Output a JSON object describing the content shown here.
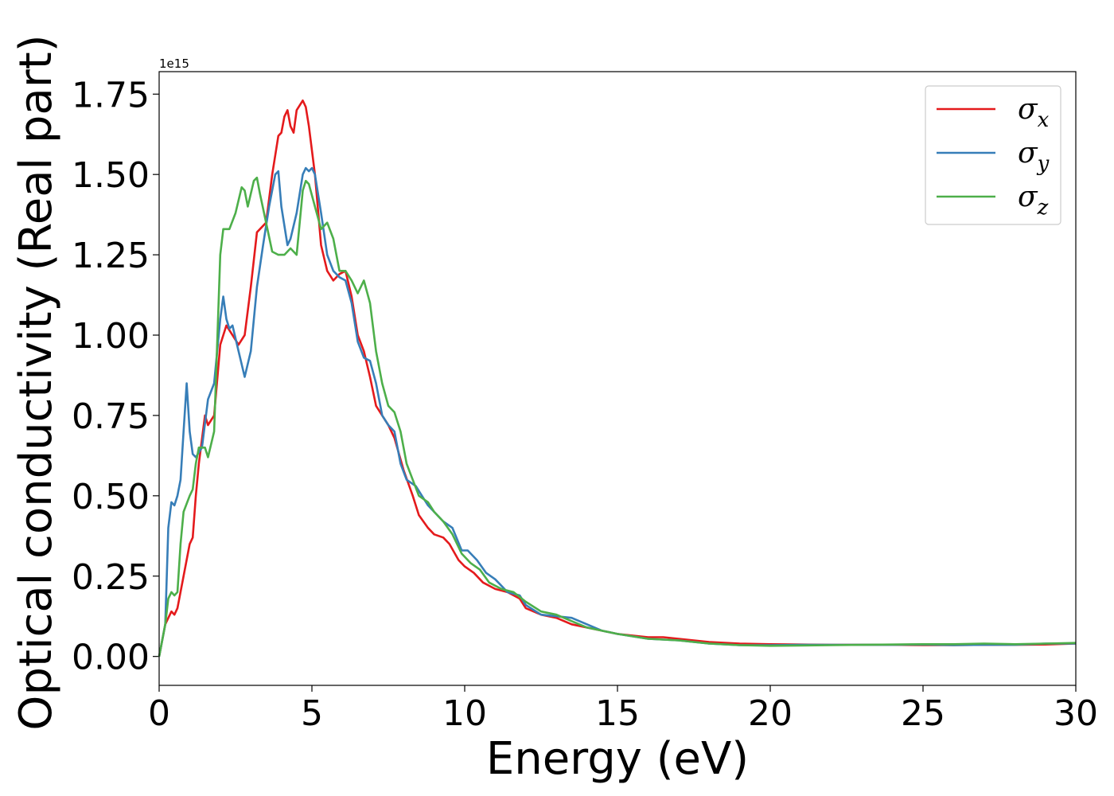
{
  "chart_data": {
    "type": "line",
    "title": "",
    "xlabel": "Energy (eV)",
    "ylabel": "Optical conductivity (Real part)",
    "y_offset_label": "1e15",
    "xlim": [
      0,
      30
    ],
    "ylim": [
      -0.09,
      1.82
    ],
    "xticks": [
      0,
      5,
      10,
      15,
      20,
      25,
      30
    ],
    "xtick_labels": [
      "0",
      "5",
      "10",
      "15",
      "20",
      "25",
      "30"
    ],
    "yticks": [
      0.0,
      0.25,
      0.5,
      0.75,
      1.0,
      1.25,
      1.5,
      1.75
    ],
    "ytick_labels": [
      "0.00",
      "0.25",
      "0.50",
      "0.75",
      "1.00",
      "1.25",
      "1.50",
      "1.75"
    ],
    "grid": false,
    "legend_placement": "top-right",
    "series": [
      {
        "name": "σx",
        "legend_base": "σ",
        "legend_sub": "x",
        "color": "#e41a1c",
        "points": [
          [
            0,
            0
          ],
          [
            0.2,
            0.1
          ],
          [
            0.4,
            0.14
          ],
          [
            0.5,
            0.13
          ],
          [
            0.6,
            0.15
          ],
          [
            0.8,
            0.25
          ],
          [
            1.0,
            0.35
          ],
          [
            1.1,
            0.37
          ],
          [
            1.2,
            0.5
          ],
          [
            1.3,
            0.6
          ],
          [
            1.5,
            0.75
          ],
          [
            1.6,
            0.72
          ],
          [
            1.8,
            0.75
          ],
          [
            2.0,
            0.97
          ],
          [
            2.2,
            1.03
          ],
          [
            2.4,
            1.0
          ],
          [
            2.6,
            0.97
          ],
          [
            2.8,
            1.0
          ],
          [
            3.0,
            1.15
          ],
          [
            3.2,
            1.32
          ],
          [
            3.5,
            1.35
          ],
          [
            3.7,
            1.5
          ],
          [
            3.9,
            1.62
          ],
          [
            4.0,
            1.63
          ],
          [
            4.1,
            1.68
          ],
          [
            4.2,
            1.7
          ],
          [
            4.3,
            1.65
          ],
          [
            4.4,
            1.63
          ],
          [
            4.5,
            1.7
          ],
          [
            4.7,
            1.73
          ],
          [
            4.8,
            1.71
          ],
          [
            4.9,
            1.65
          ],
          [
            5.1,
            1.5
          ],
          [
            5.3,
            1.28
          ],
          [
            5.5,
            1.2
          ],
          [
            5.7,
            1.17
          ],
          [
            5.9,
            1.19
          ],
          [
            6.1,
            1.2
          ],
          [
            6.3,
            1.12
          ],
          [
            6.5,
            1.0
          ],
          [
            6.7,
            0.95
          ],
          [
            6.9,
            0.87
          ],
          [
            7.1,
            0.78
          ],
          [
            7.3,
            0.75
          ],
          [
            7.5,
            0.72
          ],
          [
            7.7,
            0.68
          ],
          [
            8.0,
            0.58
          ],
          [
            8.3,
            0.5
          ],
          [
            8.5,
            0.44
          ],
          [
            8.8,
            0.4
          ],
          [
            9.0,
            0.38
          ],
          [
            9.3,
            0.37
          ],
          [
            9.5,
            0.35
          ],
          [
            9.8,
            0.3
          ],
          [
            10.0,
            0.28
          ],
          [
            10.3,
            0.26
          ],
          [
            10.6,
            0.23
          ],
          [
            11.0,
            0.21
          ],
          [
            11.4,
            0.2
          ],
          [
            11.8,
            0.18
          ],
          [
            12.0,
            0.15
          ],
          [
            12.5,
            0.13
          ],
          [
            13.0,
            0.12
          ],
          [
            13.5,
            0.1
          ],
          [
            14.0,
            0.09
          ],
          [
            14.5,
            0.08
          ],
          [
            15.0,
            0.07
          ],
          [
            16.0,
            0.06
          ],
          [
            16.5,
            0.06
          ],
          [
            17.0,
            0.055
          ],
          [
            17.5,
            0.05
          ],
          [
            18.0,
            0.045
          ],
          [
            19.0,
            0.04
          ],
          [
            20.0,
            0.038
          ],
          [
            21.0,
            0.037
          ],
          [
            22.0,
            0.036
          ],
          [
            23.0,
            0.036
          ],
          [
            24.0,
            0.036
          ],
          [
            25.0,
            0.035
          ],
          [
            26.0,
            0.035
          ],
          [
            27.0,
            0.036
          ],
          [
            28.0,
            0.036
          ],
          [
            29.0,
            0.037
          ],
          [
            30.0,
            0.04
          ]
        ]
      },
      {
        "name": "σy",
        "legend_base": "σ",
        "legend_sub": "y",
        "color": "#377eb8",
        "points": [
          [
            0,
            0
          ],
          [
            0.2,
            0.1
          ],
          [
            0.3,
            0.4
          ],
          [
            0.4,
            0.48
          ],
          [
            0.5,
            0.47
          ],
          [
            0.6,
            0.5
          ],
          [
            0.7,
            0.55
          ],
          [
            0.8,
            0.7
          ],
          [
            0.9,
            0.85
          ],
          [
            1.0,
            0.7
          ],
          [
            1.1,
            0.63
          ],
          [
            1.2,
            0.62
          ],
          [
            1.4,
            0.65
          ],
          [
            1.6,
            0.8
          ],
          [
            1.8,
            0.85
          ],
          [
            2.0,
            1.05
          ],
          [
            2.1,
            1.12
          ],
          [
            2.2,
            1.05
          ],
          [
            2.3,
            1.02
          ],
          [
            2.4,
            1.03
          ],
          [
            2.6,
            0.95
          ],
          [
            2.8,
            0.87
          ],
          [
            3.0,
            0.95
          ],
          [
            3.2,
            1.15
          ],
          [
            3.4,
            1.28
          ],
          [
            3.6,
            1.4
          ],
          [
            3.8,
            1.5
          ],
          [
            3.9,
            1.51
          ],
          [
            4.0,
            1.4
          ],
          [
            4.2,
            1.28
          ],
          [
            4.3,
            1.3
          ],
          [
            4.5,
            1.38
          ],
          [
            4.7,
            1.5
          ],
          [
            4.8,
            1.52
          ],
          [
            4.9,
            1.51
          ],
          [
            5.0,
            1.52
          ],
          [
            5.1,
            1.5
          ],
          [
            5.3,
            1.38
          ],
          [
            5.5,
            1.25
          ],
          [
            5.7,
            1.2
          ],
          [
            5.9,
            1.18
          ],
          [
            6.1,
            1.17
          ],
          [
            6.3,
            1.1
          ],
          [
            6.5,
            0.98
          ],
          [
            6.7,
            0.93
          ],
          [
            6.9,
            0.92
          ],
          [
            7.1,
            0.85
          ],
          [
            7.3,
            0.75
          ],
          [
            7.5,
            0.72
          ],
          [
            7.7,
            0.7
          ],
          [
            7.9,
            0.6
          ],
          [
            8.1,
            0.55
          ],
          [
            8.4,
            0.53
          ],
          [
            8.6,
            0.5
          ],
          [
            8.8,
            0.47
          ],
          [
            9.0,
            0.45
          ],
          [
            9.3,
            0.42
          ],
          [
            9.6,
            0.4
          ],
          [
            9.9,
            0.33
          ],
          [
            10.1,
            0.33
          ],
          [
            10.4,
            0.3
          ],
          [
            10.7,
            0.26
          ],
          [
            11.0,
            0.24
          ],
          [
            11.4,
            0.2
          ],
          [
            11.8,
            0.19
          ],
          [
            12.0,
            0.16
          ],
          [
            12.5,
            0.13
          ],
          [
            13.0,
            0.125
          ],
          [
            13.5,
            0.12
          ],
          [
            14.0,
            0.1
          ],
          [
            14.5,
            0.08
          ],
          [
            15.0,
            0.07
          ],
          [
            16.0,
            0.055
          ],
          [
            17.0,
            0.05
          ],
          [
            18.0,
            0.04
          ],
          [
            19.0,
            0.035
          ],
          [
            20.0,
            0.035
          ],
          [
            21.0,
            0.036
          ],
          [
            22.0,
            0.036
          ],
          [
            23.0,
            0.036
          ],
          [
            24.0,
            0.036
          ],
          [
            25.0,
            0.037
          ],
          [
            26.0,
            0.035
          ],
          [
            27.0,
            0.036
          ],
          [
            28.0,
            0.036
          ],
          [
            29.0,
            0.04
          ],
          [
            30.0,
            0.04
          ]
        ]
      },
      {
        "name": "σz",
        "legend_base": "σ",
        "legend_sub": "z",
        "color": "#4daf4a",
        "points": [
          [
            0,
            0
          ],
          [
            0.2,
            0.1
          ],
          [
            0.3,
            0.18
          ],
          [
            0.4,
            0.2
          ],
          [
            0.5,
            0.19
          ],
          [
            0.6,
            0.2
          ],
          [
            0.7,
            0.35
          ],
          [
            0.8,
            0.45
          ],
          [
            1.0,
            0.5
          ],
          [
            1.1,
            0.52
          ],
          [
            1.2,
            0.6
          ],
          [
            1.3,
            0.65
          ],
          [
            1.5,
            0.65
          ],
          [
            1.6,
            0.62
          ],
          [
            1.8,
            0.7
          ],
          [
            2.0,
            1.25
          ],
          [
            2.1,
            1.33
          ],
          [
            2.3,
            1.33
          ],
          [
            2.5,
            1.38
          ],
          [
            2.7,
            1.46
          ],
          [
            2.8,
            1.45
          ],
          [
            2.9,
            1.4
          ],
          [
            3.1,
            1.48
          ],
          [
            3.2,
            1.49
          ],
          [
            3.3,
            1.44
          ],
          [
            3.5,
            1.35
          ],
          [
            3.7,
            1.26
          ],
          [
            3.9,
            1.25
          ],
          [
            4.1,
            1.25
          ],
          [
            4.3,
            1.27
          ],
          [
            4.5,
            1.25
          ],
          [
            4.7,
            1.45
          ],
          [
            4.8,
            1.48
          ],
          [
            4.9,
            1.47
          ],
          [
            5.1,
            1.4
          ],
          [
            5.3,
            1.33
          ],
          [
            5.5,
            1.35
          ],
          [
            5.7,
            1.3
          ],
          [
            5.9,
            1.2
          ],
          [
            6.1,
            1.2
          ],
          [
            6.3,
            1.17
          ],
          [
            6.5,
            1.13
          ],
          [
            6.7,
            1.17
          ],
          [
            6.9,
            1.1
          ],
          [
            7.1,
            0.95
          ],
          [
            7.3,
            0.85
          ],
          [
            7.5,
            0.78
          ],
          [
            7.7,
            0.76
          ],
          [
            7.9,
            0.7
          ],
          [
            8.1,
            0.6
          ],
          [
            8.3,
            0.55
          ],
          [
            8.5,
            0.5
          ],
          [
            8.8,
            0.48
          ],
          [
            9.0,
            0.45
          ],
          [
            9.3,
            0.42
          ],
          [
            9.6,
            0.38
          ],
          [
            9.9,
            0.32
          ],
          [
            10.2,
            0.29
          ],
          [
            10.5,
            0.27
          ],
          [
            10.8,
            0.23
          ],
          [
            11.2,
            0.21
          ],
          [
            11.6,
            0.2
          ],
          [
            12.0,
            0.17
          ],
          [
            12.5,
            0.14
          ],
          [
            13.0,
            0.13
          ],
          [
            13.5,
            0.11
          ],
          [
            14.0,
            0.09
          ],
          [
            14.5,
            0.08
          ],
          [
            15.0,
            0.07
          ],
          [
            16.0,
            0.055
          ],
          [
            17.0,
            0.05
          ],
          [
            18.0,
            0.04
          ],
          [
            19.0,
            0.035
          ],
          [
            20.0,
            0.033
          ],
          [
            21.0,
            0.034
          ],
          [
            22.0,
            0.035
          ],
          [
            23.0,
            0.036
          ],
          [
            24.0,
            0.037
          ],
          [
            25.0,
            0.038
          ],
          [
            26.0,
            0.038
          ],
          [
            27.0,
            0.04
          ],
          [
            28.0,
            0.038
          ],
          [
            29.0,
            0.04
          ],
          [
            30.0,
            0.042
          ]
        ]
      }
    ]
  }
}
